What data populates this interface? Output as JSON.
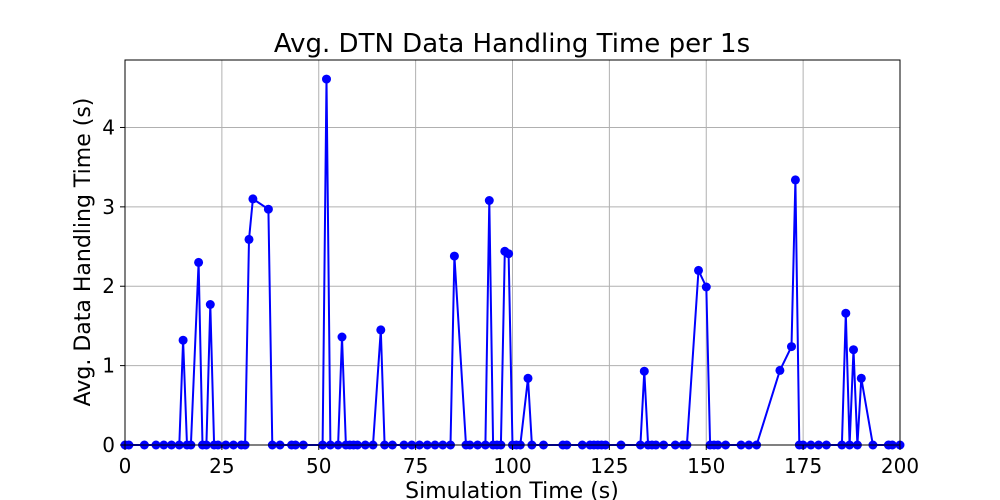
{
  "chart_data": {
    "type": "line",
    "title": "Avg. DTN Data Handling Time per 1s",
    "xlabel": "Simulation Time (s)",
    "ylabel": "Avg. Data Handling Time (s)",
    "xlim": [
      0,
      200
    ],
    "ylim": [
      0,
      4.85
    ],
    "xticks": [
      0,
      25,
      50,
      75,
      100,
      125,
      150,
      175,
      200
    ],
    "yticks": [
      0,
      1,
      2,
      3,
      4
    ],
    "grid": true,
    "color": "#0000ff",
    "marker": "circle",
    "series": [
      {
        "x": [
          0,
          1,
          5,
          8,
          10,
          12,
          14,
          15,
          16,
          17,
          19,
          20,
          21,
          22,
          23,
          24,
          26,
          28,
          30,
          31,
          32,
          33,
          37,
          38,
          40,
          43,
          44,
          46,
          51,
          52,
          53,
          55,
          56,
          57,
          58,
          59,
          60,
          62,
          64,
          66,
          67,
          69,
          72,
          74,
          76,
          78,
          80,
          82,
          84,
          85,
          88,
          89,
          91,
          93,
          94,
          95,
          96,
          97,
          98,
          99,
          100,
          101,
          102,
          104,
          105,
          108,
          113,
          114,
          118,
          120,
          121,
          122,
          123,
          124,
          128,
          133,
          134,
          135,
          136,
          137,
          139,
          142,
          144,
          145,
          148,
          150,
          151,
          152,
          153,
          155,
          159,
          161,
          163,
          169,
          172,
          173,
          174,
          175,
          177,
          179,
          181,
          185,
          186,
          187,
          188,
          189,
          190,
          193,
          197,
          198,
          200
        ],
        "y": [
          0,
          0,
          0,
          0,
          0,
          0,
          0,
          1.32,
          0,
          0,
          2.3,
          0,
          0,
          1.77,
          0,
          0,
          0,
          0,
          0,
          0,
          2.59,
          3.1,
          2.97,
          0,
          0,
          0,
          0,
          0,
          0,
          4.61,
          0,
          0,
          1.36,
          0,
          0,
          0,
          0,
          0,
          0,
          1.45,
          0,
          0,
          0,
          0,
          0,
          0,
          0,
          0,
          0,
          2.38,
          0,
          0,
          0,
          0,
          3.08,
          0,
          0,
          0,
          2.44,
          2.41,
          0,
          0,
          0,
          0.84,
          0,
          0,
          0,
          0,
          0,
          0,
          0,
          0,
          0,
          0,
          0,
          0,
          0.93,
          0,
          0,
          0,
          0,
          0,
          0,
          0,
          2.2,
          1.99,
          0,
          0,
          0,
          0,
          0,
          0,
          0,
          0.94,
          1.24,
          3.34,
          0,
          0,
          0,
          0,
          0,
          0,
          1.66,
          0,
          1.2,
          0,
          0.84,
          0,
          0,
          0,
          0
        ]
      }
    ]
  }
}
